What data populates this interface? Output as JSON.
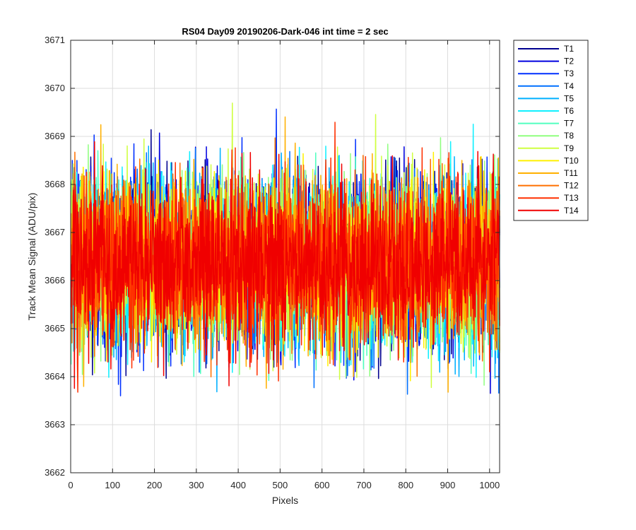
{
  "chart_data": {
    "type": "line",
    "title": "RS04 Day09 20190206-Dark-046 int time = 2 sec",
    "xlabel": "Pixels",
    "ylabel": "Track Mean Signal (ADU/pix)",
    "xlim": [
      0,
      1024
    ],
    "ylim": [
      3662,
      3671
    ],
    "xticks": [
      0,
      100,
      200,
      300,
      400,
      500,
      600,
      700,
      800,
      900,
      1000
    ],
    "yticks": [
      3662,
      3663,
      3664,
      3665,
      3666,
      3667,
      3668,
      3669,
      3670,
      3671
    ],
    "x": {
      "start": 1,
      "end": 1024,
      "step": 1
    },
    "grid": true,
    "legend_position": "outside-right",
    "series": [
      {
        "name": "T1",
        "color": "#00008F",
        "mean": 3666.4,
        "std": 0.85,
        "min": 3663.9,
        "max": 3669.8
      },
      {
        "name": "T2",
        "color": "#0000DF",
        "mean": 3666.4,
        "std": 0.85,
        "min": 3663.3,
        "max": 3670.1
      },
      {
        "name": "T3",
        "color": "#0030FF",
        "mean": 3666.4,
        "std": 0.85,
        "min": 3663.6,
        "max": 3669.9
      },
      {
        "name": "T4",
        "color": "#0070FF",
        "mean": 3666.4,
        "std": 0.85,
        "min": 3663.2,
        "max": 3670.5
      },
      {
        "name": "T5",
        "color": "#00B0FF",
        "mean": 3666.4,
        "std": 0.85,
        "min": 3663.6,
        "max": 3669.7
      },
      {
        "name": "T6",
        "color": "#10F0FF",
        "mean": 3666.4,
        "std": 0.85,
        "min": 3663.7,
        "max": 3669.5
      },
      {
        "name": "T7",
        "color": "#50FFBF",
        "mean": 3666.4,
        "std": 0.85,
        "min": 3663.9,
        "max": 3670.3
      },
      {
        "name": "T8",
        "color": "#8FFF7F",
        "mean": 3666.4,
        "std": 0.85,
        "min": 3663.8,
        "max": 3670.1
      },
      {
        "name": "T9",
        "color": "#CFFF40",
        "mean": 3666.4,
        "std": 0.85,
        "min": 3663.6,
        "max": 3670.0
      },
      {
        "name": "T10",
        "color": "#FFF000",
        "mean": 3666.4,
        "std": 0.85,
        "min": 3663.5,
        "max": 3670.0
      },
      {
        "name": "T11",
        "color": "#FFB000",
        "mean": 3666.4,
        "std": 0.85,
        "min": 3663.2,
        "max": 3669.5
      },
      {
        "name": "T12",
        "color": "#FF7000",
        "mean": 3666.4,
        "std": 0.85,
        "min": 3663.2,
        "max": 3670.1
      },
      {
        "name": "T13",
        "color": "#FF3000",
        "mean": 3666.4,
        "std": 0.85,
        "min": 3662.8,
        "max": 3669.3
      },
      {
        "name": "T14",
        "color": "#F00000",
        "mean": 3666.4,
        "std": 0.85,
        "min": 3662.9,
        "max": 3669.0
      }
    ]
  }
}
